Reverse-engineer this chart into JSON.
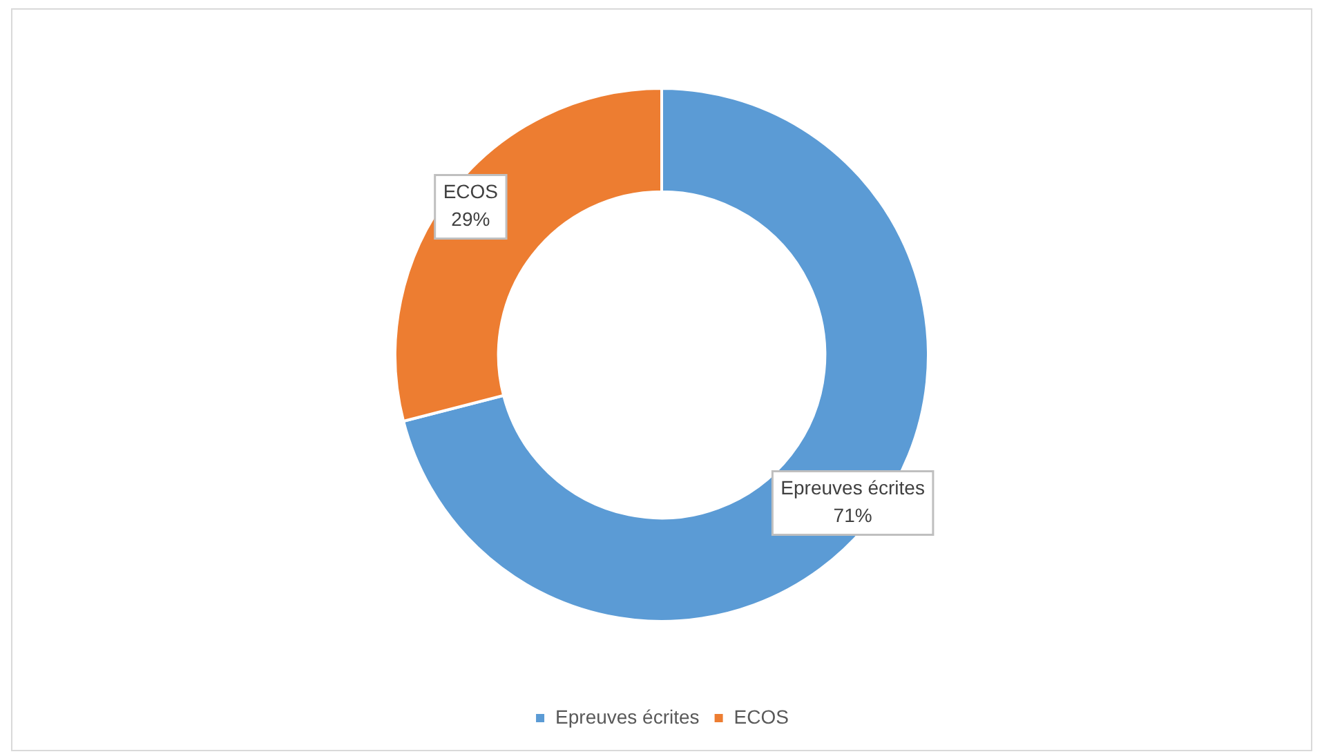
{
  "chart_data": {
    "type": "donut",
    "categories": [
      "Epreuves écrites",
      "ECOS"
    ],
    "values": [
      71,
      29
    ],
    "colors": [
      "#5b9bd5",
      "#ed7d31"
    ],
    "value_labels": [
      "71%",
      "29%"
    ],
    "legend": "bottom"
  }
}
